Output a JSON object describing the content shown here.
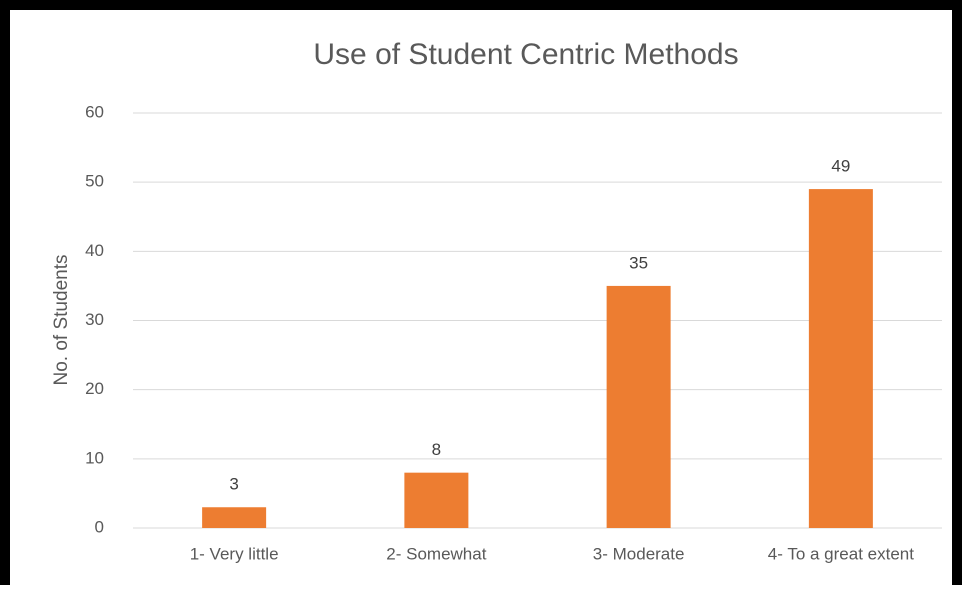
{
  "chart_data": {
    "type": "bar",
    "title": "Use of Student Centric Methods",
    "y_label": "No. of Students",
    "categories": [
      "1- Very little",
      "2- Somewhat",
      "3- Moderate",
      "4- To a great extent"
    ],
    "values": [
      3,
      8,
      35,
      49
    ],
    "color": "#ed7d31",
    "ylim": [
      0,
      60
    ],
    "yticks": [
      0,
      10,
      20,
      30,
      40,
      50,
      60
    ],
    "grid": true
  }
}
